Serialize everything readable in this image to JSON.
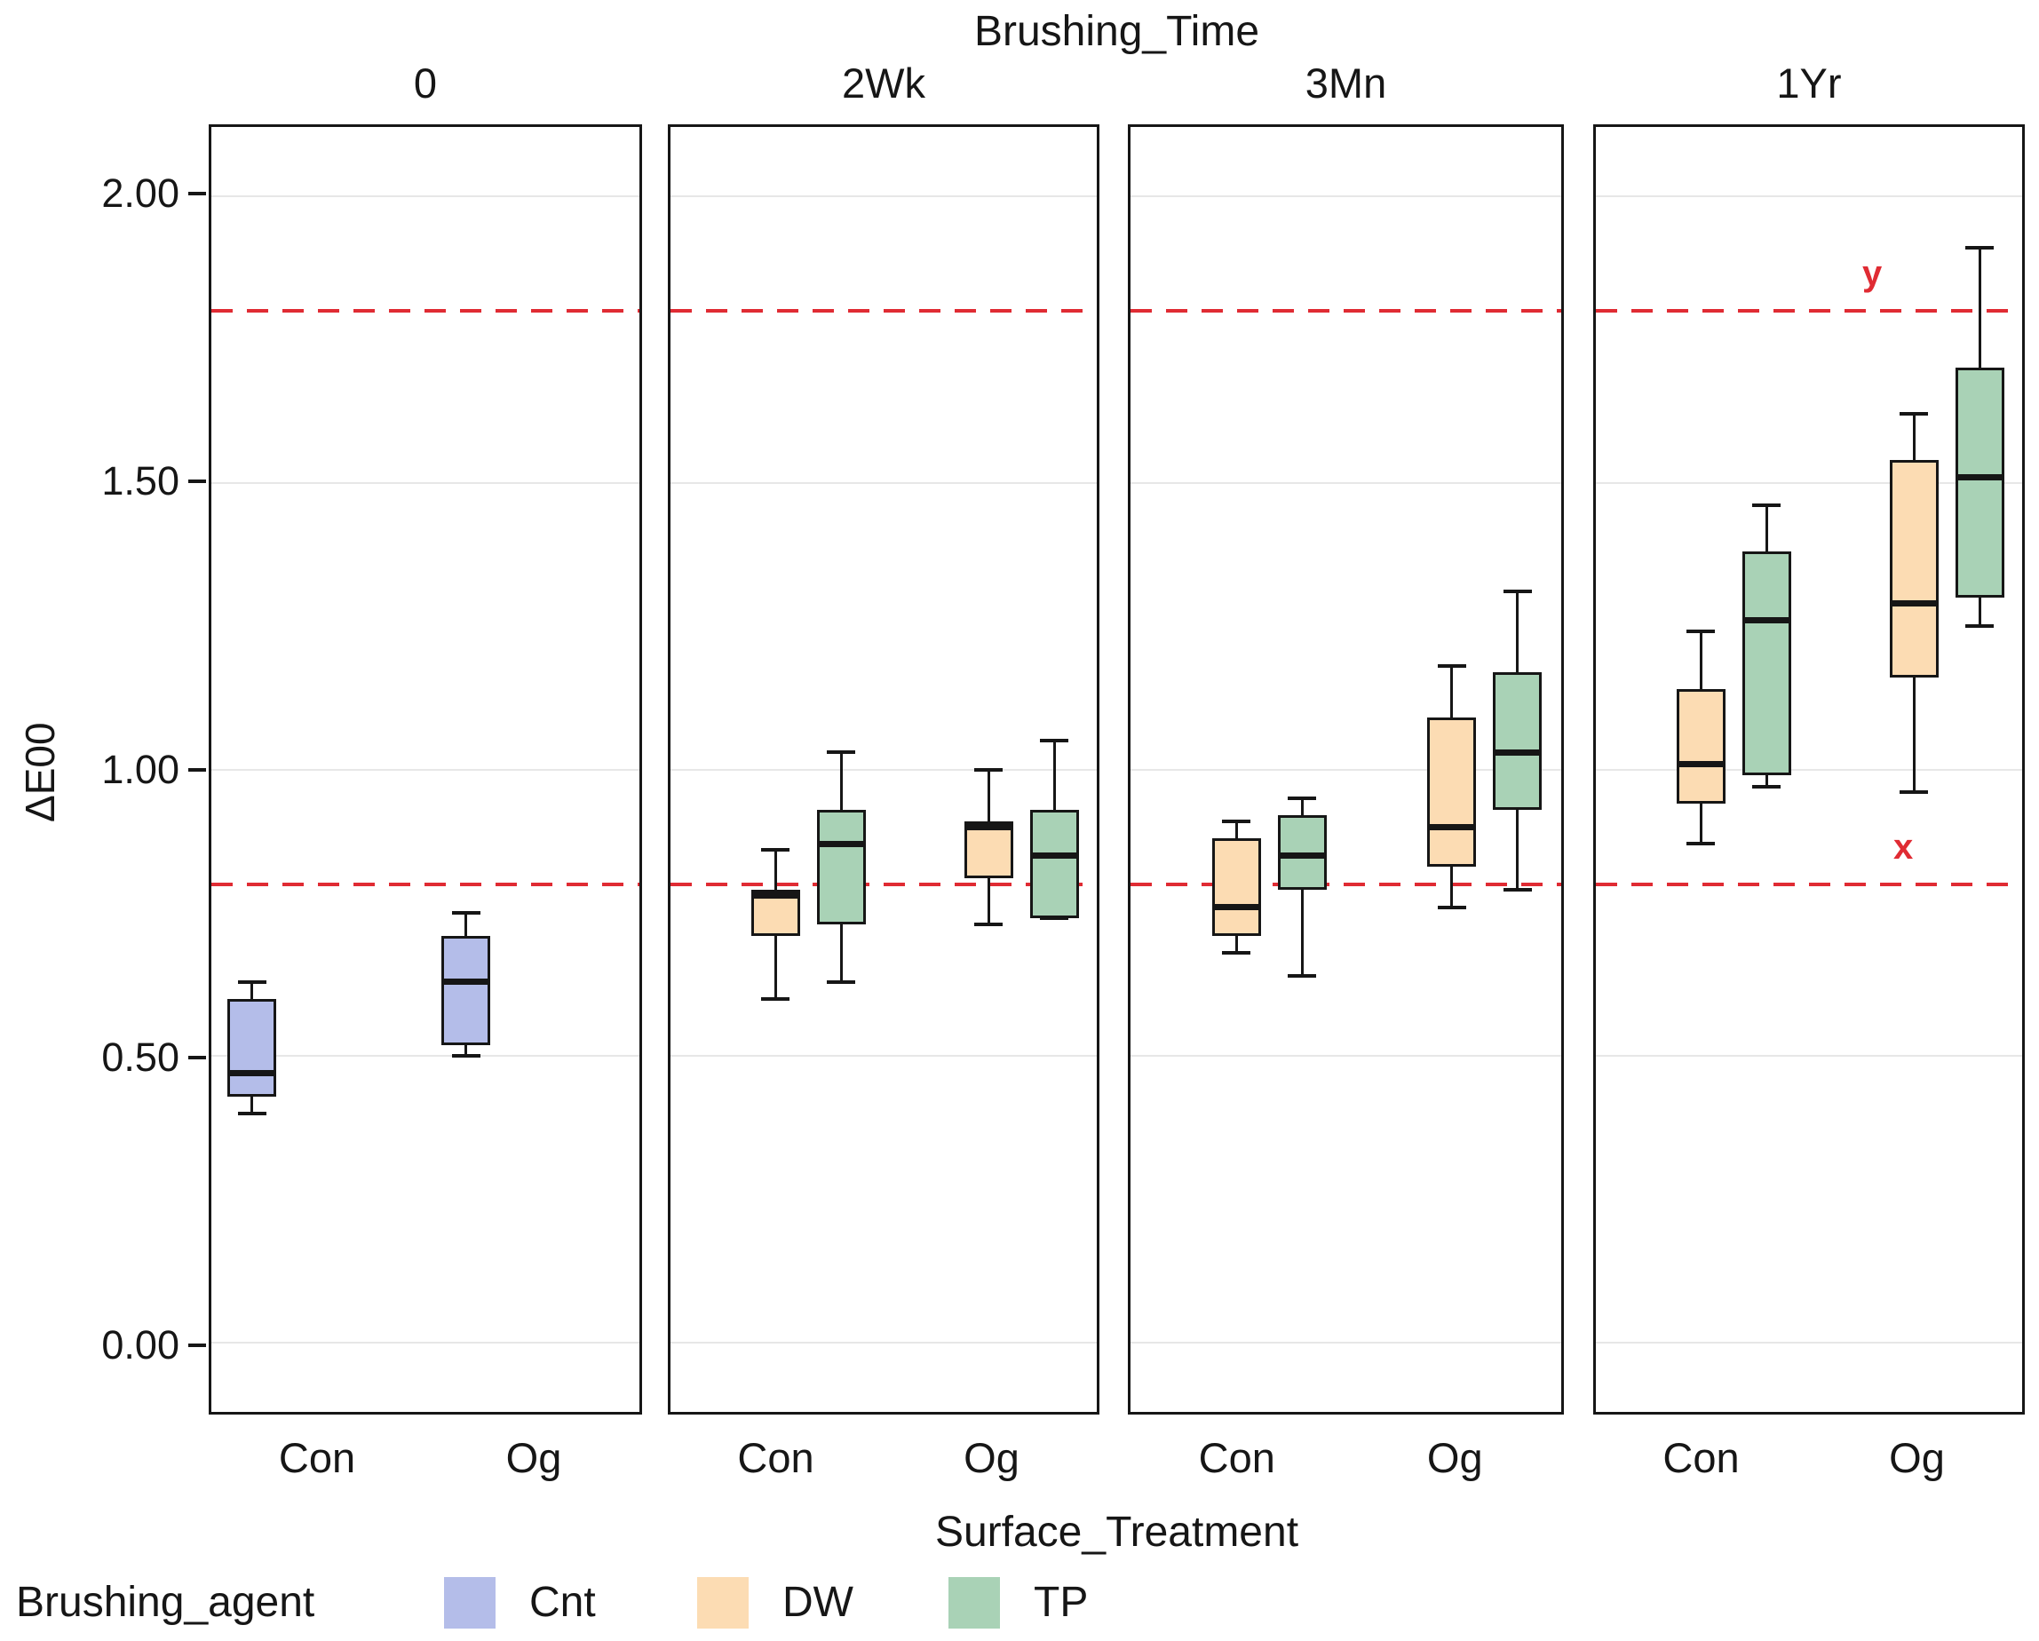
{
  "title": "Brushing_Time",
  "y_axis": {
    "label": "ΔE00",
    "ticks": [
      {
        "label": "0.00",
        "value": 0.0
      },
      {
        "label": "0.50",
        "value": 0.5
      },
      {
        "label": "1.00",
        "value": 1.0
      },
      {
        "label": "1.50",
        "value": 1.5
      },
      {
        "label": "2.00",
        "value": 2.0
      }
    ],
    "range": [
      -0.12,
      2.12
    ]
  },
  "x_axis": {
    "label": "Surface_Treatment",
    "categories": [
      "Con",
      "Og"
    ]
  },
  "legend": {
    "title": "Brushing_agent",
    "items": [
      {
        "label": "Cnt",
        "color": "#b4bde9"
      },
      {
        "label": "DW",
        "color": "#fcdcb3"
      },
      {
        "label": "TP",
        "color": "#a9d2b6"
      }
    ]
  },
  "ref_lines": [
    {
      "label": "y",
      "value": 1.8,
      "color": "#e02b33",
      "style": "dashed"
    },
    {
      "label": "x",
      "value": 0.8,
      "color": "#e02b33",
      "style": "dashed"
    }
  ],
  "colors": {
    "Cnt": "#b4bde9",
    "DW": "#fcdcb3",
    "TP": "#a9d2b6",
    "grid": "#e7e7e7",
    "ink": "#161616",
    "reference": "#e02b33"
  },
  "chart_data": {
    "type": "boxplot",
    "facet_variable": "Brushing_Time",
    "group_variable": "Surface_Treatment",
    "series_variable": "Brushing_agent",
    "legend_position": "bottom",
    "grid": "major-horizontal",
    "ylim": [
      -0.12,
      2.12
    ],
    "facets": [
      {
        "label": "0",
        "groups": [
          {
            "category": "Con",
            "boxes": [
              {
                "agent": "Cnt",
                "low": 0.4,
                "q1": 0.43,
                "median": 0.47,
                "q3": 0.6,
                "high": 0.63
              }
            ]
          },
          {
            "category": "Og",
            "boxes": [
              {
                "agent": "Cnt",
                "low": 0.5,
                "q1": 0.52,
                "median": 0.63,
                "q3": 0.71,
                "high": 0.75
              }
            ]
          }
        ]
      },
      {
        "label": "2Wk",
        "groups": [
          {
            "category": "Con",
            "boxes": [
              {
                "agent": "DW",
                "low": 0.6,
                "q1": 0.71,
                "median": 0.78,
                "q3": 0.79,
                "high": 0.86
              },
              {
                "agent": "TP",
                "low": 0.63,
                "q1": 0.73,
                "median": 0.87,
                "q3": 0.93,
                "high": 1.03
              }
            ]
          },
          {
            "category": "Og",
            "boxes": [
              {
                "agent": "DW",
                "low": 0.73,
                "q1": 0.81,
                "median": 0.9,
                "q3": 0.91,
                "high": 1.0
              },
              {
                "agent": "TP",
                "low": 0.74,
                "q1": 0.74,
                "median": 0.85,
                "q3": 0.93,
                "high": 1.05
              }
            ]
          }
        ]
      },
      {
        "label": "3Mn",
        "groups": [
          {
            "category": "Con",
            "boxes": [
              {
                "agent": "DW",
                "low": 0.68,
                "q1": 0.71,
                "median": 0.76,
                "q3": 0.88,
                "high": 0.91
              },
              {
                "agent": "TP",
                "low": 0.64,
                "q1": 0.79,
                "median": 0.85,
                "q3": 0.92,
                "high": 0.95
              }
            ]
          },
          {
            "category": "Og",
            "boxes": [
              {
                "agent": "DW",
                "low": 0.76,
                "q1": 0.83,
                "median": 0.9,
                "q3": 1.09,
                "high": 1.18
              },
              {
                "agent": "TP",
                "low": 0.79,
                "q1": 0.93,
                "median": 1.03,
                "q3": 1.17,
                "high": 1.31
              }
            ]
          }
        ]
      },
      {
        "label": "1Yr",
        "groups": [
          {
            "category": "Con",
            "boxes": [
              {
                "agent": "DW",
                "low": 0.87,
                "q1": 0.94,
                "median": 1.01,
                "q3": 1.14,
                "high": 1.24
              },
              {
                "agent": "TP",
                "low": 0.97,
                "q1": 0.99,
                "median": 1.26,
                "q3": 1.38,
                "high": 1.46
              }
            ]
          },
          {
            "category": "Og",
            "boxes": [
              {
                "agent": "DW",
                "low": 0.96,
                "q1": 1.16,
                "median": 1.29,
                "q3": 1.54,
                "high": 1.62
              },
              {
                "agent": "TP",
                "low": 1.25,
                "q1": 1.3,
                "median": 1.51,
                "q3": 1.7,
                "high": 1.91
              }
            ]
          }
        ]
      }
    ]
  }
}
